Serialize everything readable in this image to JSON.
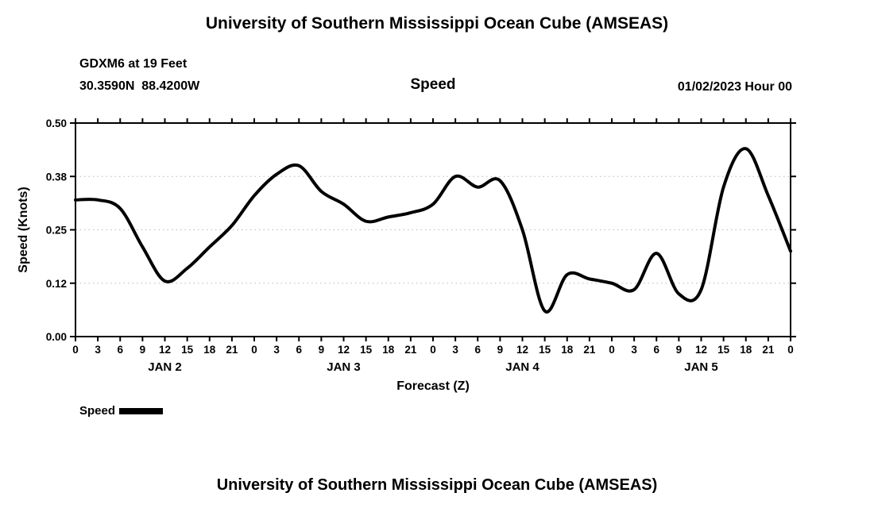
{
  "page": {
    "title_top": "University of Southern Mississippi Ocean Cube (AMSEAS)",
    "title_bottom": "University of Southern Mississippi Ocean Cube (AMSEAS)"
  },
  "header": {
    "station": "GDXM6 at 19 Feet",
    "coordinates": "30.3590N  88.4200W",
    "variable": "Speed",
    "datetime": "01/02/2023 Hour 00"
  },
  "legend": {
    "label": "Speed",
    "color": "#000000"
  },
  "chart_data": {
    "type": "line",
    "title": "Speed",
    "xlabel": "Forecast (Z)",
    "ylabel": "Speed (Knots)",
    "ylim": [
      0,
      0.5
    ],
    "grid": "dotted-horizontal",
    "line_width": 4,
    "line_color": "#000000",
    "yticks": [
      {
        "value": 0,
        "label": "0.00"
      },
      {
        "value": 0.125,
        "label": "0.12"
      },
      {
        "value": 0.25,
        "label": "0.25"
      },
      {
        "value": 0.375,
        "label": "0.38"
      },
      {
        "value": 0.5,
        "label": "0.50"
      }
    ],
    "x_hours": [
      0,
      3,
      6,
      9,
      12,
      15,
      18,
      21,
      24,
      27,
      30,
      33,
      36,
      39,
      42,
      45,
      48,
      51,
      54,
      57,
      60,
      63,
      66,
      69,
      72,
      75,
      78,
      81,
      84,
      87,
      90,
      93,
      96
    ],
    "xtick_labels": [
      "0",
      "3",
      "6",
      "9",
      "12",
      "15",
      "18",
      "21",
      "0",
      "3",
      "6",
      "9",
      "12",
      "15",
      "18",
      "21",
      "0",
      "3",
      "6",
      "9",
      "12",
      "15",
      "18",
      "21",
      "0",
      "3",
      "6",
      "9",
      "12",
      "15",
      "18",
      "21",
      "0"
    ],
    "day_labels": [
      {
        "label": "JAN 2",
        "hour": 12
      },
      {
        "label": "JAN 3",
        "hour": 36
      },
      {
        "label": "JAN 4",
        "hour": 60
      },
      {
        "label": "JAN 5",
        "hour": 84
      }
    ],
    "series": [
      {
        "name": "Speed",
        "color": "#000000",
        "values": [
          0.32,
          0.32,
          0.3,
          0.21,
          0.13,
          0.16,
          0.21,
          0.26,
          0.33,
          0.38,
          0.4,
          0.34,
          0.31,
          0.27,
          0.28,
          0.29,
          0.31,
          0.375,
          0.35,
          0.365,
          0.25,
          0.06,
          0.145,
          0.135,
          0.125,
          0.11,
          0.195,
          0.1,
          0.11,
          0.35,
          0.44,
          0.33,
          0.2
        ]
      }
    ]
  }
}
